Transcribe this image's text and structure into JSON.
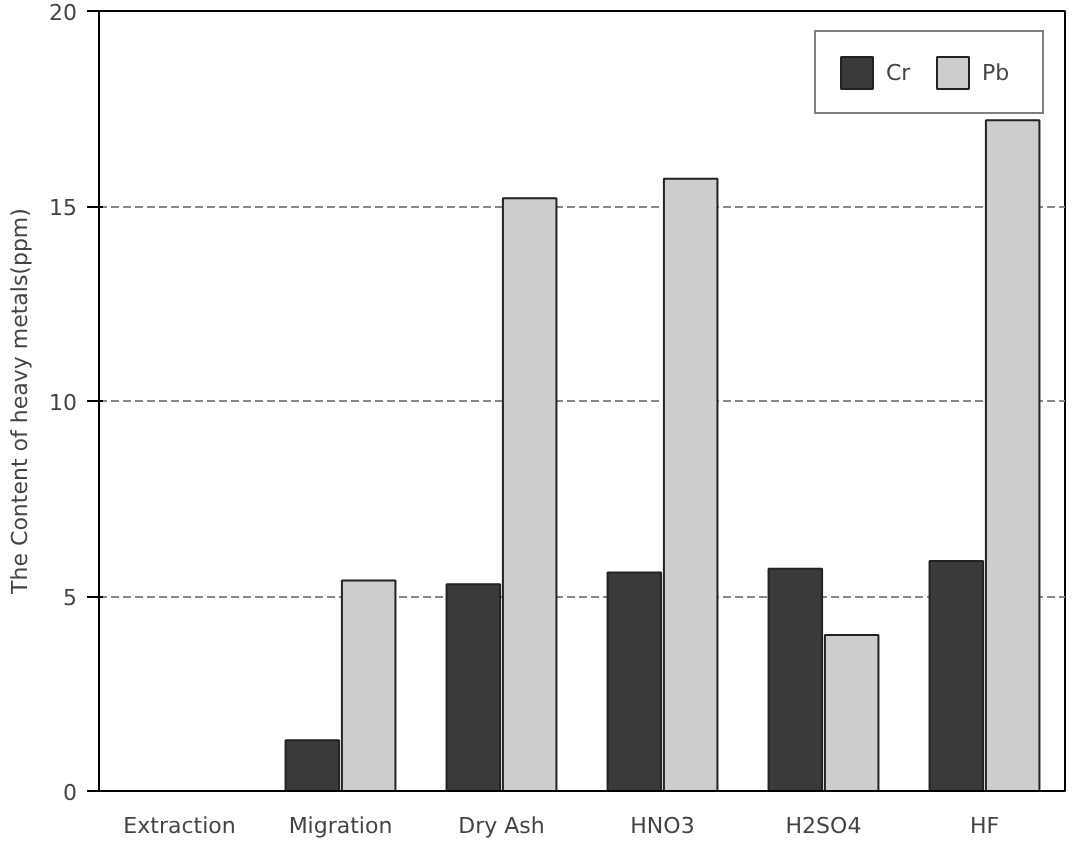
{
  "chart_data": {
    "type": "bar",
    "ylabel": "The Content of heavy metals(ppm)",
    "categories": [
      "Extraction",
      "Migration",
      "Dry Ash",
      "HNO3",
      "H2SO4",
      "HF"
    ],
    "series": [
      {
        "name": "Cr",
        "color": "#3a3a3a",
        "values": [
          null,
          1.3,
          5.3,
          5.6,
          5.7,
          5.9
        ]
      },
      {
        "name": "Pb",
        "color": "#cdcdcd",
        "values": [
          null,
          5.4,
          15.2,
          15.7,
          4.0,
          17.2
        ]
      }
    ],
    "ylim": [
      0,
      20
    ],
    "yticks": [
      0,
      5,
      10,
      15,
      20
    ],
    "grid": "y",
    "legend": "top right"
  }
}
